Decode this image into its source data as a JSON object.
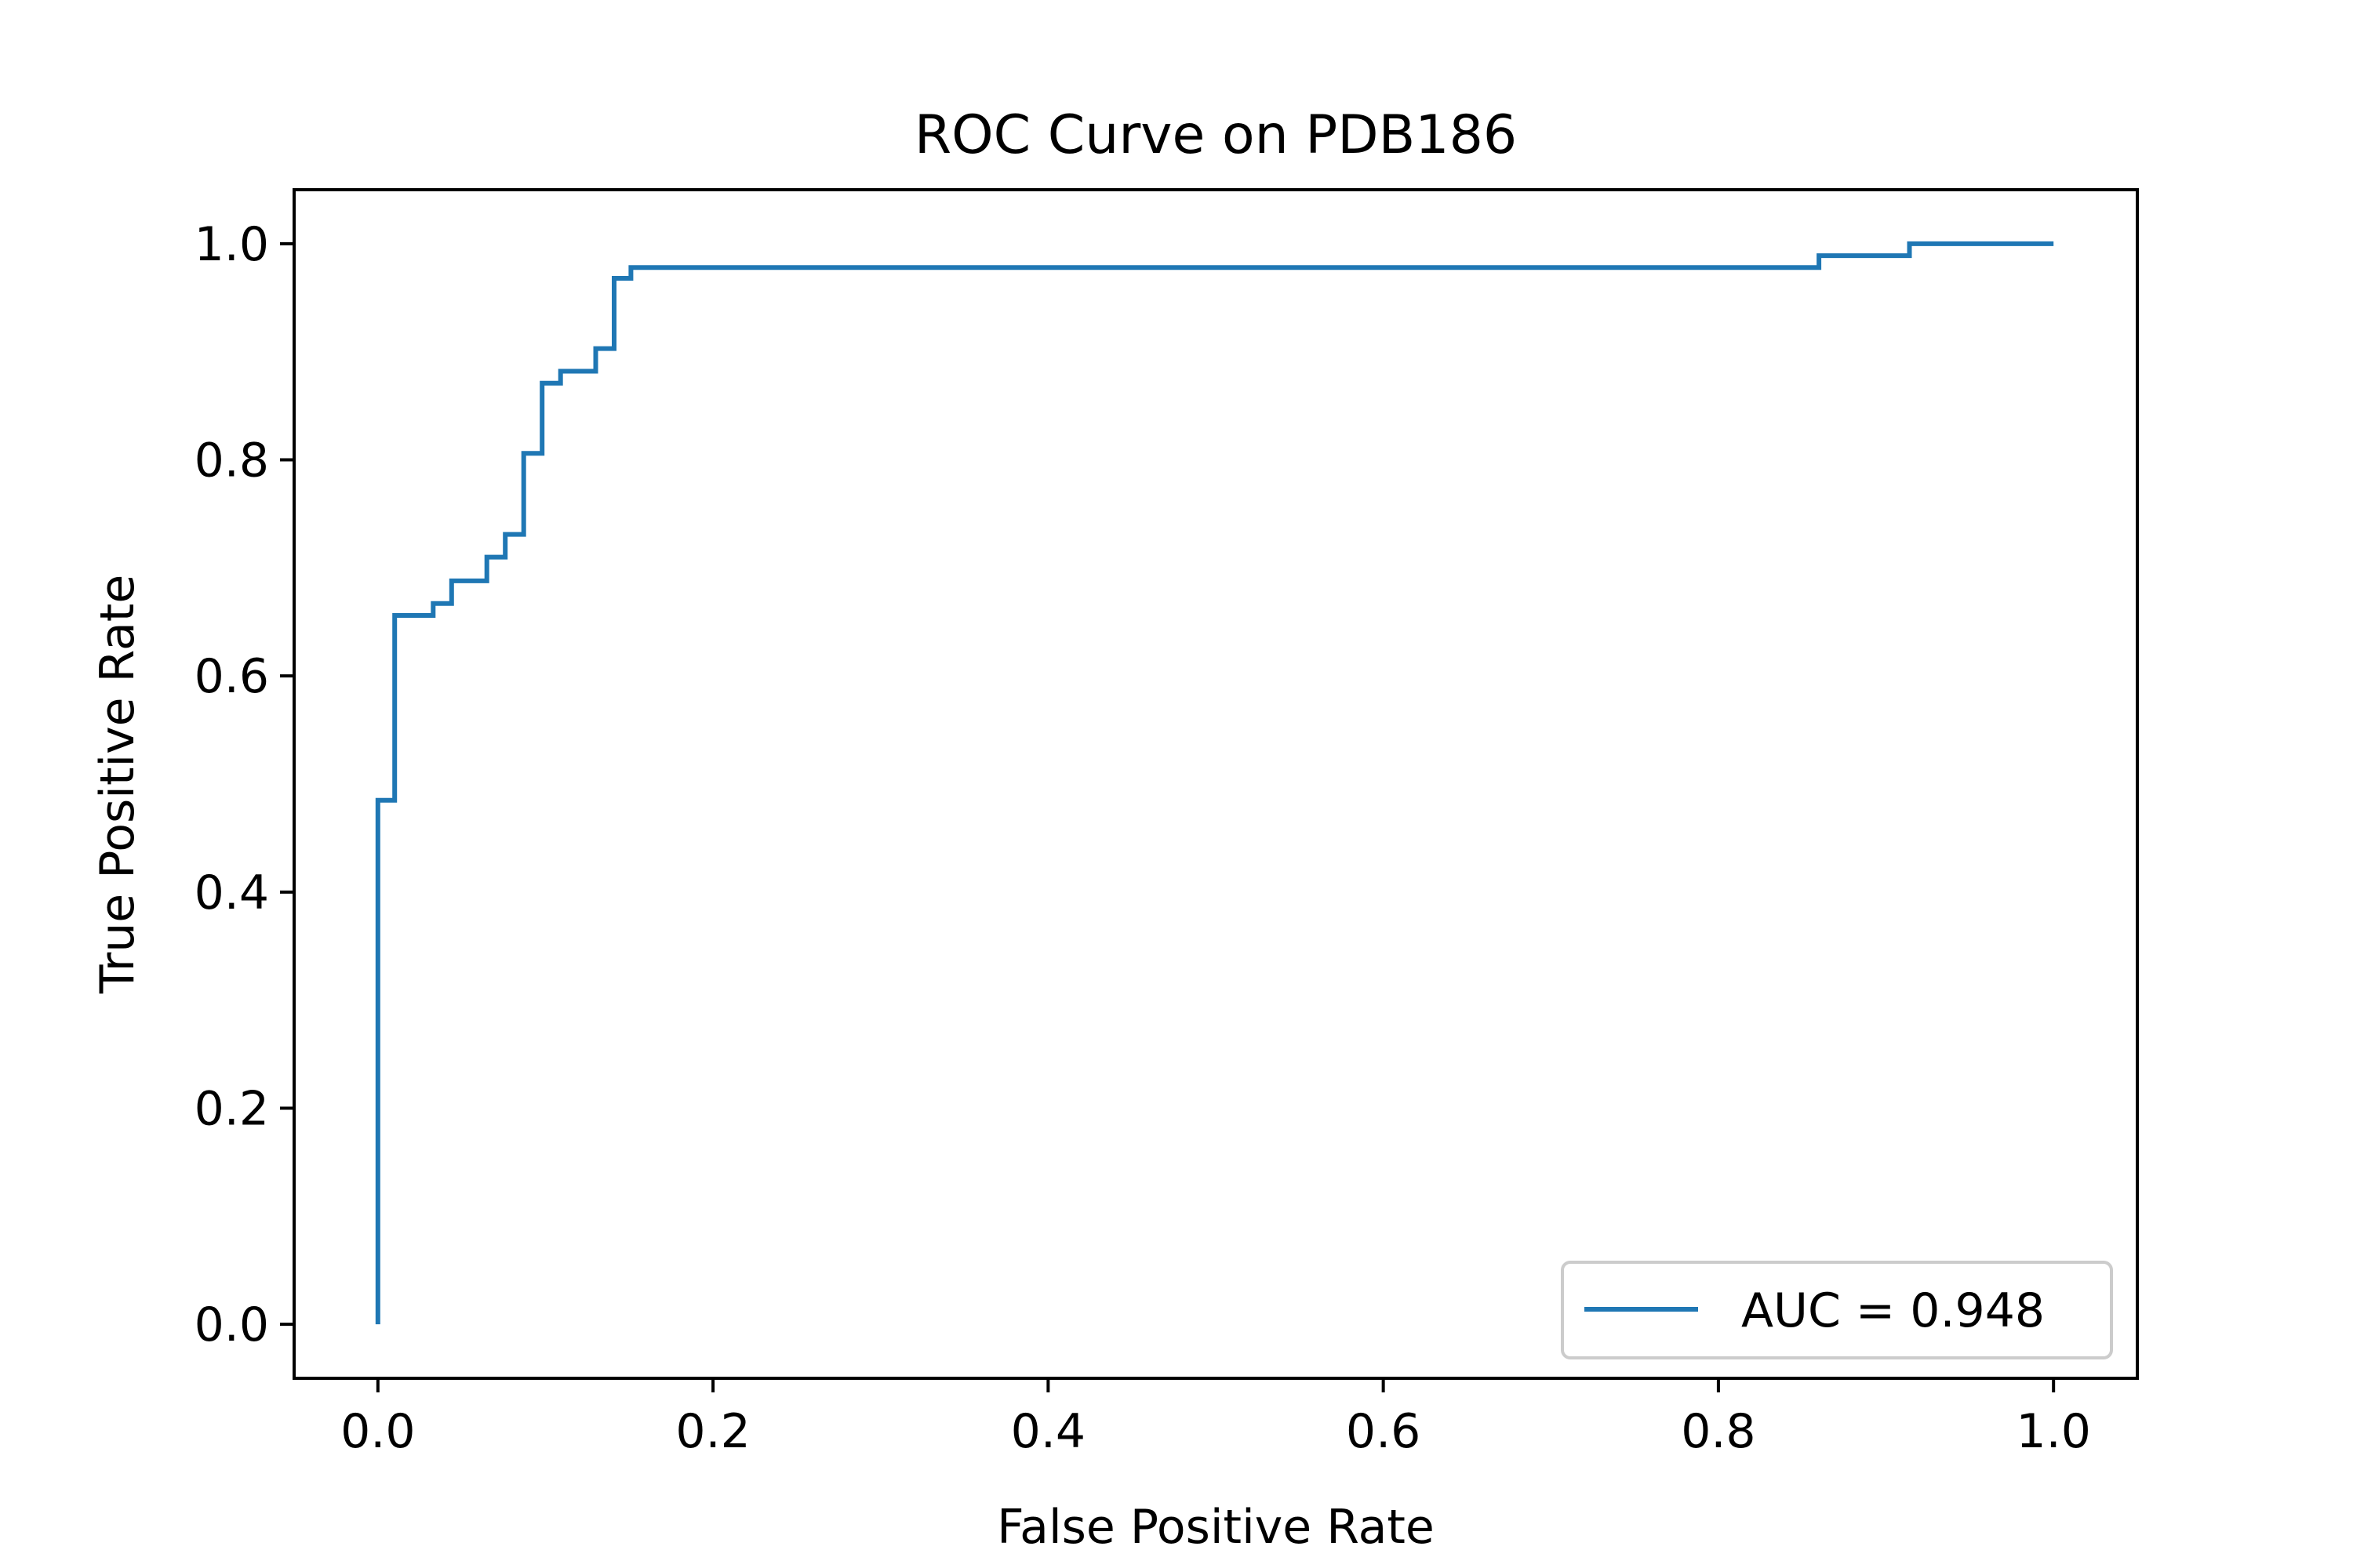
{
  "chart_data": {
    "type": "line",
    "title": "ROC Curve on PDB186",
    "xlabel": "False Positive Rate",
    "ylabel": "True Positive Rate",
    "xlim": [
      -0.05,
      1.05
    ],
    "ylim": [
      -0.05,
      1.05
    ],
    "xticks": [
      0.0,
      0.2,
      0.4,
      0.6,
      0.8,
      1.0
    ],
    "yticks": [
      0.0,
      0.2,
      0.4,
      0.6,
      0.8,
      1.0
    ],
    "xtick_labels": [
      "0.0",
      "0.2",
      "0.4",
      "0.6",
      "0.8",
      "1.0"
    ],
    "ytick_labels": [
      "0.0",
      "0.2",
      "0.4",
      "0.6",
      "0.8",
      "1.0"
    ],
    "grid": false,
    "legend": {
      "position": "lower-right"
    },
    "series": [
      {
        "name": "AUC = 0.948",
        "color": "#1f77b4",
        "drawstyle": "steps-post",
        "points": [
          [
            0.0,
            0.0
          ],
          [
            0.0,
            0.485
          ],
          [
            0.01,
            0.485
          ],
          [
            0.01,
            0.656
          ],
          [
            0.033,
            0.656
          ],
          [
            0.033,
            0.667
          ],
          [
            0.044,
            0.667
          ],
          [
            0.044,
            0.688
          ],
          [
            0.065,
            0.688
          ],
          [
            0.065,
            0.71
          ],
          [
            0.076,
            0.71
          ],
          [
            0.076,
            0.731
          ],
          [
            0.087,
            0.731
          ],
          [
            0.087,
            0.806
          ],
          [
            0.098,
            0.806
          ],
          [
            0.098,
            0.871
          ],
          [
            0.109,
            0.871
          ],
          [
            0.109,
            0.882
          ],
          [
            0.13,
            0.882
          ],
          [
            0.13,
            0.903
          ],
          [
            0.141,
            0.903
          ],
          [
            0.141,
            0.968
          ],
          [
            0.151,
            0.968
          ],
          [
            0.151,
            0.978
          ],
          [
            0.86,
            0.978
          ],
          [
            0.86,
            0.989
          ],
          [
            0.914,
            0.989
          ],
          [
            0.914,
            1.0
          ],
          [
            1.0,
            1.0
          ]
        ]
      }
    ]
  }
}
